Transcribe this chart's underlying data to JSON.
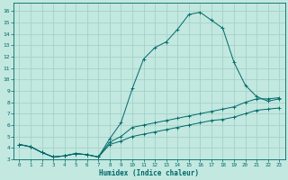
{
  "xlabel": "Humidex (Indice chaleur)",
  "background_color": "#c2e8e0",
  "grid_color": "#9ecec6",
  "line_color": "#006868",
  "xlim": [
    -0.5,
    23.5
  ],
  "ylim": [
    3.0,
    16.7
  ],
  "yticks": [
    3,
    4,
    5,
    6,
    7,
    8,
    9,
    10,
    11,
    12,
    13,
    14,
    15,
    16
  ],
  "xticks": [
    0,
    1,
    2,
    3,
    4,
    5,
    6,
    7,
    8,
    9,
    10,
    11,
    12,
    13,
    14,
    15,
    16,
    17,
    18,
    19,
    20,
    21,
    22,
    23
  ],
  "line1_x": [
    0,
    1,
    2,
    3,
    4,
    5,
    6,
    7,
    8,
    9,
    10,
    11,
    12,
    13,
    14,
    15,
    16,
    17,
    18,
    19,
    20,
    21,
    22,
    23
  ],
  "line1_y": [
    4.3,
    4.1,
    3.6,
    3.2,
    3.3,
    3.5,
    3.4,
    3.2,
    4.8,
    6.2,
    9.2,
    11.8,
    12.8,
    13.3,
    14.4,
    15.7,
    15.9,
    15.2,
    14.5,
    11.5,
    9.5,
    8.5,
    8.1,
    8.3
  ],
  "line2_x": [
    0,
    1,
    2,
    3,
    4,
    5,
    6,
    7,
    8,
    9,
    10,
    11,
    12,
    13,
    14,
    15,
    16,
    17,
    18,
    19,
    20,
    21,
    22,
    23
  ],
  "line2_y": [
    4.3,
    4.1,
    3.6,
    3.2,
    3.3,
    3.5,
    3.4,
    3.2,
    4.5,
    5.0,
    5.8,
    6.0,
    6.2,
    6.4,
    6.6,
    6.8,
    7.0,
    7.2,
    7.4,
    7.6,
    8.0,
    8.3,
    8.3,
    8.4
  ],
  "line3_x": [
    0,
    1,
    2,
    3,
    4,
    5,
    6,
    7,
    8,
    9,
    10,
    11,
    12,
    13,
    14,
    15,
    16,
    17,
    18,
    19,
    20,
    21,
    22,
    23
  ],
  "line3_y": [
    4.3,
    4.1,
    3.6,
    3.2,
    3.3,
    3.5,
    3.4,
    3.2,
    4.3,
    4.6,
    5.0,
    5.2,
    5.4,
    5.6,
    5.8,
    6.0,
    6.2,
    6.4,
    6.5,
    6.7,
    7.0,
    7.3,
    7.4,
    7.5
  ]
}
